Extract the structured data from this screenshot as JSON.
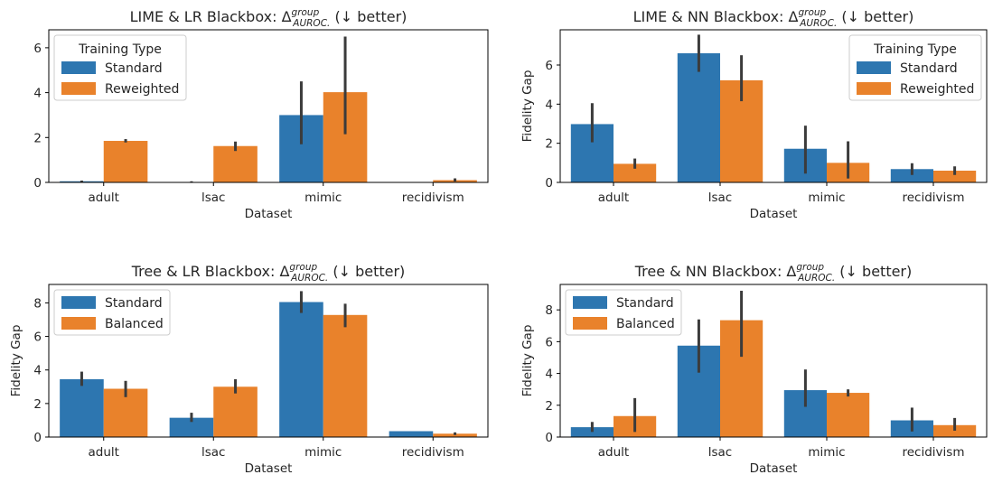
{
  "colors": {
    "standard": "#2d76b0",
    "second": "#e9822b",
    "error_bar": "#3b3b3b"
  },
  "chart_data": [
    {
      "type": "bar",
      "title": {
        "main": "LIME & LR Blackbox: Δ",
        "sup": "group",
        "sub": "AUROC.",
        "tail": " (↓ better)"
      },
      "xlabel": "Dataset",
      "ylabel": "",
      "categories": [
        "adult",
        "lsac",
        "mimic",
        "recidivism"
      ],
      "ylim": [
        0,
        6.8
      ],
      "yticks": [
        0,
        2,
        4,
        6
      ],
      "grid": false,
      "legend": {
        "title": "Training Type",
        "placement": "top-left"
      },
      "series": [
        {
          "name": "Standard",
          "values": [
            0.05,
            0.02,
            3.0,
            0.0
          ],
          "err_low": [
            0.02,
            0.0,
            1.7,
            0.0
          ],
          "err_high": [
            0.08,
            0.05,
            4.5,
            0.0
          ]
        },
        {
          "name": "Reweighted",
          "values": [
            1.85,
            1.62,
            4.02,
            0.1
          ],
          "err_low": [
            1.78,
            1.4,
            2.15,
            0.04
          ],
          "err_high": [
            1.93,
            1.82,
            6.5,
            0.18
          ]
        }
      ]
    },
    {
      "type": "bar",
      "title": {
        "main": "LIME & NN Blackbox: Δ",
        "sup": "group",
        "sub": "AUROC.",
        "tail": " (↓ better)"
      },
      "xlabel": "Dataset",
      "ylabel": "Fidelity Gap",
      "categories": [
        "adult",
        "lsac",
        "mimic",
        "recidivism"
      ],
      "ylim": [
        0,
        7.8
      ],
      "yticks": [
        0,
        2,
        4,
        6
      ],
      "grid": false,
      "legend": {
        "title": "Training Type",
        "placement": "top-right"
      },
      "series": [
        {
          "name": "Standard",
          "values": [
            2.98,
            6.6,
            1.72,
            0.68
          ],
          "err_low": [
            2.05,
            5.65,
            0.45,
            0.38
          ],
          "err_high": [
            4.05,
            7.55,
            2.9,
            0.98
          ]
        },
        {
          "name": "Reweighted",
          "values": [
            0.95,
            5.22,
            1.0,
            0.6
          ],
          "err_low": [
            0.7,
            4.15,
            0.2,
            0.38
          ],
          "err_high": [
            1.22,
            6.5,
            2.1,
            0.82
          ]
        }
      ]
    },
    {
      "type": "bar",
      "title": {
        "main": "Tree & LR Blackbox: Δ",
        "sup": "group",
        "sub": "AUROC.",
        "tail": " (↓ better)"
      },
      "xlabel": "Dataset",
      "ylabel": "Fidelity Gap",
      "categories": [
        "adult",
        "lsac",
        "mimic",
        "recidivism"
      ],
      "ylim": [
        0,
        9.1
      ],
      "yticks": [
        0,
        2,
        4,
        6,
        8
      ],
      "grid": false,
      "legend": {
        "title": "",
        "placement": "top-left"
      },
      "series": [
        {
          "name": "Standard",
          "values": [
            3.45,
            1.15,
            8.05,
            0.35
          ],
          "err_low": [
            3.05,
            0.9,
            7.4,
            0.35
          ],
          "err_high": [
            3.9,
            1.45,
            8.7,
            0.35
          ]
        },
        {
          "name": "Balanced",
          "values": [
            2.88,
            3.0,
            7.28,
            0.2
          ],
          "err_low": [
            2.38,
            2.6,
            6.55,
            0.12
          ],
          "err_high": [
            3.35,
            3.45,
            7.95,
            0.28
          ]
        }
      ]
    },
    {
      "type": "bar",
      "title": {
        "main": "Tree & NN Blackbox: Δ",
        "sup": "group",
        "sub": "AUROC.",
        "tail": " (↓ better)"
      },
      "xlabel": "Dataset",
      "ylabel": "Fidelity Gap",
      "categories": [
        "adult",
        "lsac",
        "mimic",
        "recidivism"
      ],
      "ylim": [
        0,
        9.6
      ],
      "yticks": [
        0,
        2,
        4,
        6,
        8
      ],
      "grid": false,
      "legend": {
        "title": "",
        "placement": "top-left"
      },
      "series": [
        {
          "name": "Standard",
          "values": [
            0.62,
            5.75,
            2.95,
            1.05
          ],
          "err_low": [
            0.32,
            4.05,
            1.9,
            0.35
          ],
          "err_high": [
            0.95,
            7.4,
            4.25,
            1.85
          ]
        },
        {
          "name": "Balanced",
          "values": [
            1.32,
            7.35,
            2.78,
            0.75
          ],
          "err_low": [
            0.32,
            5.05,
            2.55,
            0.4
          ],
          "err_high": [
            2.45,
            9.2,
            3.0,
            1.2
          ]
        }
      ]
    }
  ]
}
